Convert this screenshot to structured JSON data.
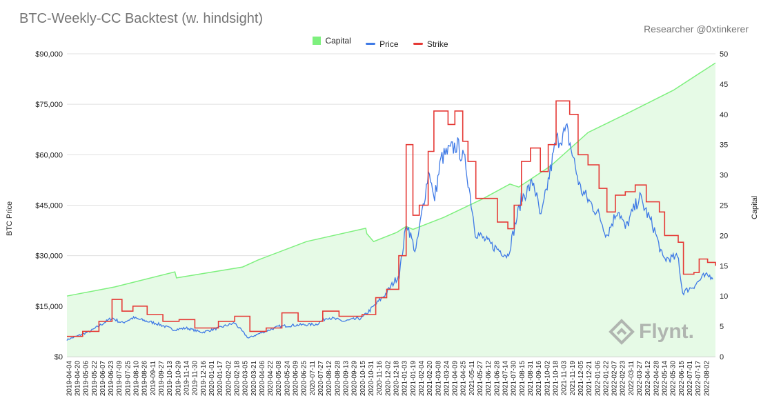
{
  "title": "BTC-Weekly-CC Backtest (w. hindsight)",
  "subtitle": "Researcher @0xtinkerer",
  "watermark": "Flynt.",
  "colors": {
    "capital": "#7ef07e",
    "capital_fill": "#e6fae6",
    "price": "#3f7ae6",
    "strike": "#e53935",
    "grid": "#e0e0e0"
  },
  "chart_data": {
    "type": "line",
    "title": "BTC-Weekly-CC Backtest (w. hindsight)",
    "legend": {
      "position": "top",
      "entries": [
        "Capital",
        "Price",
        "Strike"
      ]
    },
    "y_left": {
      "label": "BTC Price",
      "range": [
        0,
        90000
      ],
      "ticks": [
        "$0",
        "$15,000",
        "$30,000",
        "$45,000",
        "$60,000",
        "$75,000",
        "$90,000"
      ],
      "tick_values": [
        0,
        15000,
        30000,
        45000,
        60000,
        75000,
        90000
      ]
    },
    "y_right": {
      "label": "Capital",
      "range": [
        0,
        50
      ],
      "ticks": [
        "0",
        "5",
        "10",
        "15",
        "20",
        "25",
        "30",
        "35",
        "40",
        "45",
        "50"
      ],
      "tick_values": [
        0,
        5,
        10,
        15,
        20,
        25,
        30,
        35,
        40,
        45,
        50
      ]
    },
    "x_tick_labels": [
      "2019-04-04",
      "2019-05-06",
      "2019-06-07",
      "2019-07-09",
      "2019-08-10",
      "2019-09-11",
      "2019-10-13",
      "2019-11-14",
      "2019-12-16",
      "2020-01-17",
      "2020-02-18",
      "2020-03-21",
      "2020-04-22",
      "2020-05-24",
      "2020-06-25",
      "2020-07-27",
      "2020-08-28",
      "2020-09-29",
      "2020-10-31",
      "2020-12-02",
      "2021-01-03",
      "2021-02-04",
      "2021-03-08",
      "2021-04-09",
      "2021-05-11",
      "2021-06-12",
      "2021-07-14",
      "2021-08-15",
      "2021-09-16",
      "2021-10-18",
      "2021-11-19",
      "2021-12-21",
      "2022-01-22",
      "2022-02-23",
      "2022-03-27",
      "2022-04-28",
      "2022-05-30",
      "2022-07-01",
      "2022-08-02"
    ],
    "x_tick_labels_alt": [
      "2019-04-20",
      "2019-05-22",
      "2019-06-23",
      "2019-07-25",
      "2019-08-26",
      "2019-09-27",
      "2019-10-29",
      "2019-11-30",
      "2020-01-01",
      "2020-02-02",
      "2020-03-05",
      "2020-04-06",
      "2020-05-08",
      "2020-06-09",
      "2020-07-11",
      "2020-08-12",
      "2020-09-13",
      "2020-10-15",
      "2020-11-16",
      "2020-12-18",
      "2021-01-19",
      "2021-02-20",
      "2021-03-24",
      "2021-04-25",
      "2021-05-27",
      "2021-06-28",
      "2021-07-30",
      "2021-08-31",
      "2021-10-02",
      "2021-11-03",
      "2021-12-05",
      "2022-01-06",
      "2022-02-07",
      "2022-03-11",
      "2022-04-12",
      "2022-05-14",
      "2022-06-15",
      "2022-07-17"
    ],
    "series": [
      {
        "name": "Capital",
        "axis": "right",
        "style": "area",
        "points": [
          [
            "2019-04-01",
            10.0
          ],
          [
            "2019-07-01",
            11.5
          ],
          [
            "2019-10-24",
            14.0
          ],
          [
            "2019-10-27",
            13.0
          ],
          [
            "2020-03-01",
            14.8
          ],
          [
            "2020-04-01",
            16.0
          ],
          [
            "2020-07-01",
            19.0
          ],
          [
            "2020-10-22",
            21.2
          ],
          [
            "2020-10-24",
            20.3
          ],
          [
            "2020-11-06",
            19.0
          ],
          [
            "2020-12-20",
            20.5
          ],
          [
            "2021-01-07",
            21.5
          ],
          [
            "2021-01-20",
            21.0
          ],
          [
            "2021-03-20",
            23.0
          ],
          [
            "2021-06-01",
            26.0
          ],
          [
            "2021-07-24",
            28.5
          ],
          [
            "2021-08-10",
            28.0
          ],
          [
            "2021-10-10",
            31.5
          ],
          [
            "2021-12-20",
            37.0
          ],
          [
            "2022-03-01",
            40.0
          ],
          [
            "2022-06-01",
            44.0
          ],
          [
            "2022-08-20",
            48.5
          ]
        ]
      },
      {
        "name": "Price",
        "axis": "left",
        "style": "line",
        "points": [
          [
            "2019-04-01",
            5000
          ],
          [
            "2019-05-15",
            7500
          ],
          [
            "2019-06-26",
            11500
          ],
          [
            "2019-07-15",
            10000
          ],
          [
            "2019-08-05",
            11500
          ],
          [
            "2019-09-20",
            9800
          ],
          [
            "2019-10-22",
            8000
          ],
          [
            "2019-11-15",
            8500
          ],
          [
            "2019-12-15",
            7200
          ],
          [
            "2020-01-15",
            8500
          ],
          [
            "2020-02-15",
            10000
          ],
          [
            "2020-03-12",
            5500
          ],
          [
            "2020-04-01",
            6800
          ],
          [
            "2020-05-10",
            9000
          ],
          [
            "2020-06-15",
            9400
          ],
          [
            "2020-07-20",
            9600
          ],
          [
            "2020-08-10",
            11700
          ],
          [
            "2020-09-10",
            10500
          ],
          [
            "2020-10-15",
            11500
          ],
          [
            "2020-11-10",
            15500
          ],
          [
            "2020-12-01",
            19000
          ],
          [
            "2020-12-25",
            24500
          ],
          [
            "2021-01-08",
            40000
          ],
          [
            "2021-01-25",
            31000
          ],
          [
            "2021-02-20",
            56000
          ],
          [
            "2021-03-01",
            46000
          ],
          [
            "2021-03-15",
            59000
          ],
          [
            "2021-04-14",
            63000
          ],
          [
            "2021-05-01",
            57000
          ],
          [
            "2021-05-19",
            37000
          ],
          [
            "2021-06-20",
            33000
          ],
          [
            "2021-07-20",
            30000
          ],
          [
            "2021-08-15",
            47000
          ],
          [
            "2021-09-07",
            52000
          ],
          [
            "2021-09-21",
            41000
          ],
          [
            "2021-10-20",
            64000
          ],
          [
            "2021-11-10",
            67000
          ],
          [
            "2021-12-05",
            50000
          ],
          [
            "2022-01-10",
            42000
          ],
          [
            "2022-01-25",
            36000
          ],
          [
            "2022-02-15",
            44000
          ],
          [
            "2022-03-01",
            38000
          ],
          [
            "2022-03-28",
            47500
          ],
          [
            "2022-04-25",
            38000
          ],
          [
            "2022-05-12",
            29000
          ],
          [
            "2022-06-10",
            29500
          ],
          [
            "2022-06-18",
            19000
          ],
          [
            "2022-07-10",
            21000
          ],
          [
            "2022-07-28",
            23800
          ],
          [
            "2022-08-15",
            24000
          ]
        ]
      },
      {
        "name": "Strike",
        "axis": "left",
        "style": "step",
        "points": [
          [
            "2019-04-01",
            6000
          ],
          [
            "2019-05-01",
            7500
          ],
          [
            "2019-06-01",
            10500
          ],
          [
            "2019-06-26",
            17000
          ],
          [
            "2019-07-15",
            13500
          ],
          [
            "2019-08-05",
            15000
          ],
          [
            "2019-09-01",
            12500
          ],
          [
            "2019-10-01",
            10500
          ],
          [
            "2019-11-01",
            11000
          ],
          [
            "2019-12-01",
            8500
          ],
          [
            "2020-01-15",
            10500
          ],
          [
            "2020-02-15",
            12000
          ],
          [
            "2020-03-15",
            7500
          ],
          [
            "2020-04-15",
            8500
          ],
          [
            "2020-05-15",
            13000
          ],
          [
            "2020-06-15",
            10500
          ],
          [
            "2020-08-01",
            13500
          ],
          [
            "2020-09-01",
            12000
          ],
          [
            "2020-10-15",
            12500
          ],
          [
            "2020-11-10",
            17500
          ],
          [
            "2020-12-01",
            20000
          ],
          [
            "2020-12-24",
            30000
          ],
          [
            "2021-01-07",
            63000
          ],
          [
            "2021-01-20",
            42000
          ],
          [
            "2021-02-01",
            45000
          ],
          [
            "2021-02-18",
            61000
          ],
          [
            "2021-03-01",
            73000
          ],
          [
            "2021-03-28",
            69000
          ],
          [
            "2021-04-10",
            73000
          ],
          [
            "2021-04-25",
            64000
          ],
          [
            "2021-05-05",
            58000
          ],
          [
            "2021-05-20",
            47000
          ],
          [
            "2021-06-30",
            40000
          ],
          [
            "2021-07-20",
            38000
          ],
          [
            "2021-08-01",
            45000
          ],
          [
            "2021-08-15",
            58000
          ],
          [
            "2021-09-01",
            62000
          ],
          [
            "2021-09-20",
            55000
          ],
          [
            "2021-10-05",
            63000
          ],
          [
            "2021-10-20",
            76000
          ],
          [
            "2021-11-15",
            72000
          ],
          [
            "2021-12-01",
            60000
          ],
          [
            "2021-12-20",
            57000
          ],
          [
            "2022-01-10",
            50000
          ],
          [
            "2022-01-25",
            43000
          ],
          [
            "2022-02-10",
            48000
          ],
          [
            "2022-03-01",
            49000
          ],
          [
            "2022-03-20",
            51000
          ],
          [
            "2022-04-10",
            46000
          ],
          [
            "2022-05-05",
            43000
          ],
          [
            "2022-05-15",
            36000
          ],
          [
            "2022-06-10",
            34000
          ],
          [
            "2022-06-20",
            24500
          ],
          [
            "2022-07-10",
            25000
          ],
          [
            "2022-07-20",
            29000
          ],
          [
            "2022-08-05",
            28000
          ],
          [
            "2022-08-20",
            27000
          ]
        ]
      }
    ]
  }
}
